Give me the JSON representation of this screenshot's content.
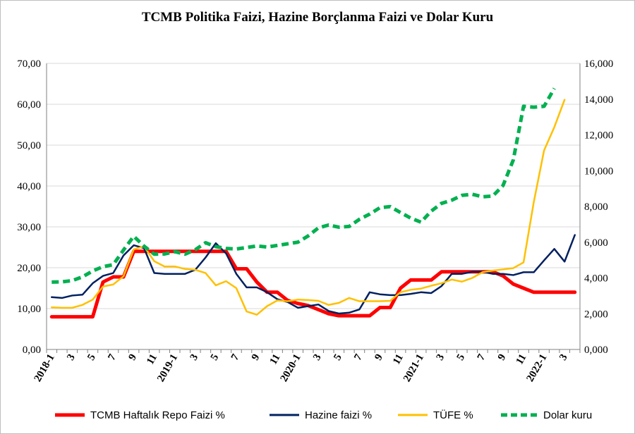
{
  "chart_data": {
    "type": "line",
    "title": "TCMB Politika Faizi, Hazine Borçlanma Faizi ve Dolar Kuru",
    "x_tick_labels": [
      "2018-1",
      "3",
      "5",
      "7",
      "9",
      "11",
      "2019-1",
      "3",
      "5",
      "7",
      "9",
      "11",
      "2020-1",
      "3",
      "5",
      "7",
      "9",
      "11",
      "2021-1",
      "3",
      "5",
      "7",
      "9",
      "11",
      "2022-1",
      "3"
    ],
    "y_left": {
      "ylim": [
        0,
        70
      ],
      "ticks": [
        "0,00",
        "10,00",
        "20,00",
        "30,00",
        "40,00",
        "50,00",
        "60,00",
        "70,00"
      ]
    },
    "y_right": {
      "ylim": [
        0,
        16000
      ],
      "ticks": [
        "0,000",
        "2,000",
        "4,000",
        "6,000",
        "8,000",
        "10,000",
        "12,000",
        "14,000",
        "16,000"
      ]
    },
    "grid": "horizontal",
    "legend_position": "bottom",
    "series": [
      {
        "name": "TCMB Haftalık Repo Faizi %",
        "axis": "left",
        "color": "#ff0000",
        "dash": "solid",
        "values": [
          8,
          8,
          8,
          8,
          8,
          16.5,
          17.75,
          17.75,
          24,
          24,
          24,
          24,
          24,
          24,
          24,
          24,
          24,
          24,
          19.75,
          19.75,
          16.5,
          14,
          14,
          12,
          11.25,
          10.75,
          9.75,
          8.75,
          8.25,
          8.25,
          8.25,
          8.25,
          10.25,
          10.25,
          15,
          17,
          17,
          17,
          19,
          19,
          19,
          19,
          19,
          19,
          18,
          16,
          15,
          14,
          14,
          14,
          14,
          14
        ]
      },
      {
        "name": "Hazine faizi %",
        "axis": "left",
        "color": "#002060",
        "dash": "solid",
        "values": [
          12.8,
          12.6,
          13.2,
          13.4,
          16.2,
          18,
          18.7,
          23,
          25.5,
          24.8,
          18.7,
          18.5,
          18.5,
          18.5,
          19.5,
          22.5,
          26,
          23.5,
          18.5,
          15.2,
          15.2,
          14,
          12.3,
          11.6,
          10.2,
          10.6,
          11,
          9.4,
          8.8,
          9,
          9.8,
          14,
          13.5,
          13.3,
          13.3,
          13.6,
          14,
          13.8,
          15.5,
          18.5,
          18.5,
          19,
          19,
          18.5,
          18.5,
          18.2,
          18.9,
          18.9,
          21.8,
          24.6,
          21.5,
          28
        ]
      },
      {
        "name": "TÜFE %",
        "axis": "left",
        "color": "#ffc000",
        "dash": "solid",
        "values": [
          10.3,
          10.2,
          10.2,
          10.9,
          12.2,
          15.4,
          15.9,
          17.9,
          24.5,
          25.2,
          21.6,
          20.3,
          20.3,
          19.7,
          19.5,
          18.7,
          15.7,
          16.7,
          15,
          9.3,
          8.5,
          10.6,
          12,
          11.8,
          12.2,
          12.1,
          11.9,
          10.9,
          11.4,
          12.6,
          11.8,
          11.8,
          11.8,
          11.9,
          14,
          14.6,
          14.9,
          15.6,
          16.2,
          17.1,
          16.6,
          17.5,
          18.9,
          19.3,
          19.6,
          19.9,
          21.3,
          36.1,
          48.7,
          54.4,
          61.1
        ]
      },
      {
        "name": "Dolar kuru",
        "axis": "right",
        "color": "#00b050",
        "dash": "dashed",
        "values": [
          3.77,
          3.78,
          3.85,
          4.06,
          4.39,
          4.63,
          4.74,
          5.56,
          6.33,
          5.78,
          5.33,
          5.34,
          5.47,
          5.33,
          5.58,
          5.97,
          5.75,
          5.65,
          5.62,
          5.7,
          5.79,
          5.73,
          5.82,
          5.91,
          6.0,
          6.35,
          6.8,
          6.96,
          6.84,
          6.88,
          7.28,
          7.57,
          7.93,
          7.99,
          7.66,
          7.35,
          7.12,
          7.74,
          8.17,
          8.35,
          8.62,
          8.68,
          8.54,
          8.58,
          9.17,
          10.6,
          13.6,
          13.55,
          13.6,
          14.6
        ]
      }
    ]
  }
}
